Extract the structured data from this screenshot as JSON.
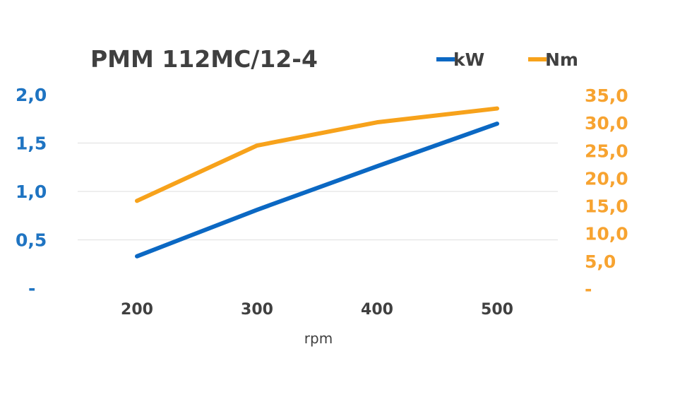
{
  "chart_data": {
    "type": "line",
    "title": "PMM 112MC/12-4",
    "xlabel": "rpm",
    "categories": [
      "200",
      "300",
      "400",
      "500"
    ],
    "x": [
      200,
      300,
      400,
      500
    ],
    "y_left": {
      "ticks": [
        "-",
        "0,5",
        "1,0",
        "1,5",
        "2,0"
      ],
      "tick_values": [
        0,
        0.5,
        1.0,
        1.5,
        2.0
      ],
      "ylim": [
        0,
        2.0
      ],
      "color": "#1f74c2"
    },
    "y_right": {
      "ticks": [
        "-",
        "5,0",
        "10,0",
        "15,0",
        "20,0",
        "25,0",
        "30,0",
        "35,0"
      ],
      "tick_values": [
        0,
        5,
        10,
        15,
        20,
        25,
        30,
        35
      ],
      "ylim": [
        0,
        35
      ],
      "color": "#f7a330"
    },
    "series": [
      {
        "name": "kW",
        "axis": "left",
        "color": "#0b68c3",
        "values": [
          0.33,
          0.81,
          1.26,
          1.7
        ]
      },
      {
        "name": "Nm",
        "axis": "right",
        "color": "#f7a21b",
        "values": [
          15.8,
          25.8,
          30.0,
          32.5
        ]
      }
    ],
    "grid": true,
    "legend_position": "top-right"
  }
}
